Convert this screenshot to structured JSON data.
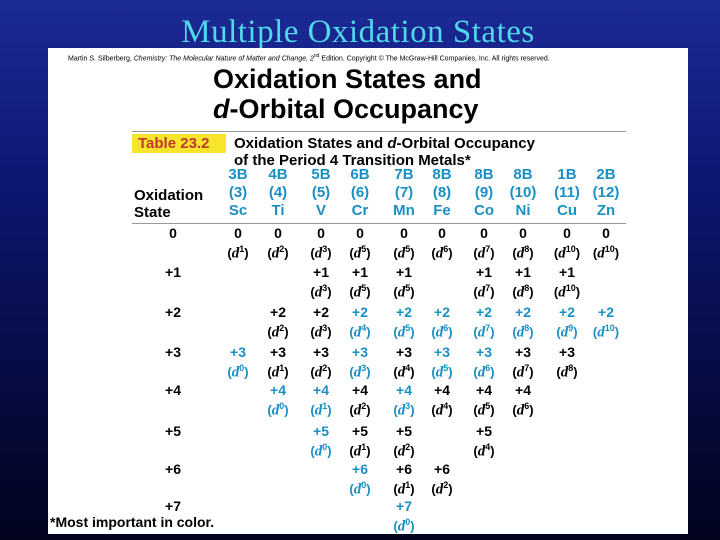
{
  "slide_title": "Multiple Oxidation States",
  "credit": {
    "pre": "Martin S. Silberberg, ",
    "book": "Chemistry: The Molecular Nature of Matter and Change, 2",
    "sup": "nd",
    "post": " Edition. Copyright © The McGraw-Hill Companies, Inc. All rights reserved."
  },
  "heading": {
    "line1": "Oxidation States and",
    "line2_d": "d",
    "line2_rest": "-Orbital Occupancy"
  },
  "table": {
    "label": "Table 23.2",
    "title_line1_a": "Oxidation States and ",
    "title_line1_d": "d",
    "title_line1_b": "-Orbital Occupancy",
    "title_line2": "of the Period 4 Transition Metals*",
    "row_header_line1": "Oxidation",
    "row_header_line2": "State",
    "columns": [
      {
        "group": "3B",
        "z": "(3)",
        "symbol": "Sc"
      },
      {
        "group": "4B",
        "z": "(4)",
        "symbol": "Ti"
      },
      {
        "group": "5B",
        "z": "(5)",
        "symbol": "V"
      },
      {
        "group": "6B",
        "z": "(6)",
        "symbol": "Cr"
      },
      {
        "group": "7B",
        "z": "(7)",
        "symbol": "Mn"
      },
      {
        "group": "8B",
        "z": "(8)",
        "symbol": "Fe"
      },
      {
        "group": "8B",
        "z": "(9)",
        "symbol": "Co"
      },
      {
        "group": "8B",
        "z": "(10)",
        "symbol": "Ni"
      },
      {
        "group": "1B",
        "z": "(11)",
        "symbol": "Cu"
      },
      {
        "group": "2B",
        "z": "(12)",
        "symbol": "Zn"
      }
    ],
    "rows": [
      {
        "state": "0",
        "cells": [
          {
            "col": 0,
            "ox": "0",
            "d": "1",
            "important": false
          },
          {
            "col": 1,
            "ox": "0",
            "d": "2",
            "important": false
          },
          {
            "col": 2,
            "ox": "0",
            "d": "3",
            "important": false
          },
          {
            "col": 3,
            "ox": "0",
            "d": "5",
            "important": false
          },
          {
            "col": 4,
            "ox": "0",
            "d": "5",
            "important": false
          },
          {
            "col": 5,
            "ox": "0",
            "d": "6",
            "important": false
          },
          {
            "col": 6,
            "ox": "0",
            "d": "7",
            "important": false
          },
          {
            "col": 7,
            "ox": "0",
            "d": "8",
            "important": false
          },
          {
            "col": 8,
            "ox": "0",
            "d": "10",
            "important": false
          },
          {
            "col": 9,
            "ox": "0",
            "d": "10",
            "important": false
          }
        ]
      },
      {
        "state": "+1",
        "cells": [
          {
            "col": 2,
            "ox": "+1",
            "d": "3",
            "important": false
          },
          {
            "col": 3,
            "ox": "+1",
            "d": "5",
            "important": false
          },
          {
            "col": 4,
            "ox": "+1",
            "d": "5",
            "important": false
          },
          {
            "col": 6,
            "ox": "+1",
            "d": "7",
            "important": false
          },
          {
            "col": 7,
            "ox": "+1",
            "d": "8",
            "important": false
          },
          {
            "col": 8,
            "ox": "+1",
            "d": "10",
            "important": false
          }
        ]
      },
      {
        "state": "+2",
        "cells": [
          {
            "col": 1,
            "ox": "+2",
            "d": "2",
            "important": false
          },
          {
            "col": 2,
            "ox": "+2",
            "d": "3",
            "important": false
          },
          {
            "col": 3,
            "ox": "+2",
            "d": "4",
            "important": true
          },
          {
            "col": 4,
            "ox": "+2",
            "d": "5",
            "important": true
          },
          {
            "col": 5,
            "ox": "+2",
            "d": "6",
            "important": true
          },
          {
            "col": 6,
            "ox": "+2",
            "d": "7",
            "important": true
          },
          {
            "col": 7,
            "ox": "+2",
            "d": "8",
            "important": true
          },
          {
            "col": 8,
            "ox": "+2",
            "d": "9",
            "important": true
          },
          {
            "col": 9,
            "ox": "+2",
            "d": "10",
            "important": true
          }
        ]
      },
      {
        "state": "+3",
        "cells": [
          {
            "col": 0,
            "ox": "+3",
            "d": "0",
            "important": true
          },
          {
            "col": 1,
            "ox": "+3",
            "d": "1",
            "important": false
          },
          {
            "col": 2,
            "ox": "+3",
            "d": "2",
            "important": false
          },
          {
            "col": 3,
            "ox": "+3",
            "d": "3",
            "important": true
          },
          {
            "col": 4,
            "ox": "+3",
            "d": "4",
            "important": false
          },
          {
            "col": 5,
            "ox": "+3",
            "d": "5",
            "important": true
          },
          {
            "col": 6,
            "ox": "+3",
            "d": "6",
            "important": true
          },
          {
            "col": 7,
            "ox": "+3",
            "d": "7",
            "important": false
          },
          {
            "col": 8,
            "ox": "+3",
            "d": "8",
            "important": false
          }
        ]
      },
      {
        "state": "+4",
        "cells": [
          {
            "col": 1,
            "ox": "+4",
            "d": "0",
            "important": true
          },
          {
            "col": 2,
            "ox": "+4",
            "d": "1",
            "important": true
          },
          {
            "col": 3,
            "ox": "+4",
            "d": "2",
            "important": false
          },
          {
            "col": 4,
            "ox": "+4",
            "d": "3",
            "important": true
          },
          {
            "col": 5,
            "ox": "+4",
            "d": "4",
            "important": false
          },
          {
            "col": 6,
            "ox": "+4",
            "d": "5",
            "important": false
          },
          {
            "col": 7,
            "ox": "+4",
            "d": "6",
            "important": false
          }
        ]
      },
      {
        "state": "+5",
        "cells": [
          {
            "col": 2,
            "ox": "+5",
            "d": "0",
            "important": true
          },
          {
            "col": 3,
            "ox": "+5",
            "d": "1",
            "important": false
          },
          {
            "col": 4,
            "ox": "+5",
            "d": "2",
            "important": false
          },
          {
            "col": 6,
            "ox": "+5",
            "d": "4",
            "important": false
          }
        ]
      },
      {
        "state": "+6",
        "cells": [
          {
            "col": 3,
            "ox": "+6",
            "d": "0",
            "important": true
          },
          {
            "col": 4,
            "ox": "+6",
            "d": "1",
            "important": false
          },
          {
            "col": 5,
            "ox": "+6",
            "d": "2",
            "important": false
          }
        ]
      },
      {
        "state": "+7",
        "cells": [
          {
            "col": 4,
            "ox": "+7",
            "d": "0",
            "important": true
          }
        ]
      }
    ],
    "footnote": "*Most important in color."
  },
  "colors": {
    "title_cyan": "#4fd8e8",
    "important_blue": "#1a8fc4",
    "label_highlight": "#f6e52a",
    "label_red": "#c0392b",
    "background_navy": "#0d1670"
  }
}
